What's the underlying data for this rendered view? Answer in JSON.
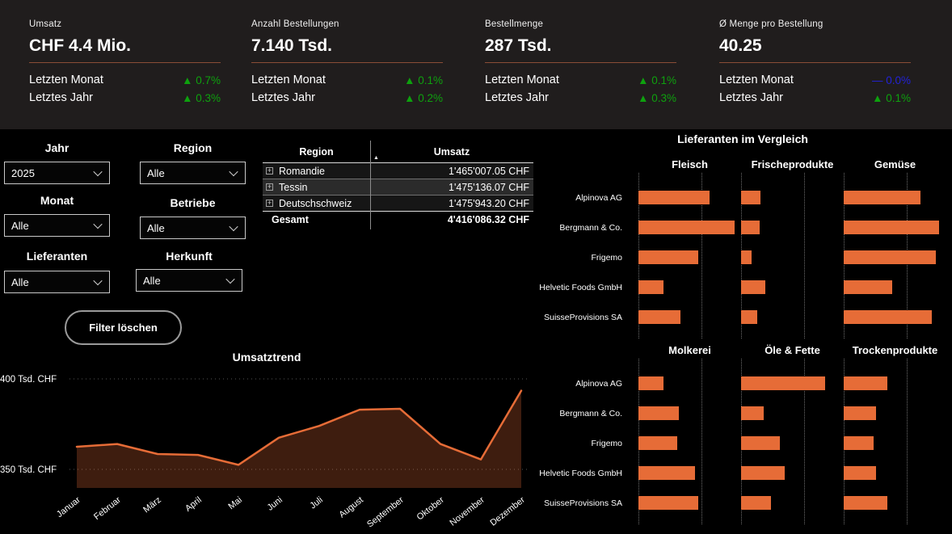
{
  "kpi_band": {
    "cards": [
      {
        "title": "Umsatz",
        "value": "CHF 4.4 Mio.",
        "rows": [
          {
            "label": "Letzten Monat",
            "trend": "up",
            "pct": "0.7%"
          },
          {
            "label": "Letztes Jahr",
            "trend": "up",
            "pct": "0.3%"
          }
        ]
      },
      {
        "title": "Anzahl Bestellungen",
        "value": "7.140 Tsd.",
        "rows": [
          {
            "label": "Letzten Monat",
            "trend": "up",
            "pct": "0.1%"
          },
          {
            "label": "Letztes Jahr",
            "trend": "up",
            "pct": "0.2%"
          }
        ]
      },
      {
        "title": "Bestellmenge",
        "value": "287 Tsd.",
        "rows": [
          {
            "label": "Letzten Monat",
            "trend": "up",
            "pct": "0.1%"
          },
          {
            "label": "Letztes Jahr",
            "trend": "up",
            "pct": "0.3%"
          }
        ]
      },
      {
        "title": "Ø Menge pro Bestellung",
        "value": "40.25",
        "rows": [
          {
            "label": "Letzten Monat",
            "trend": "flat",
            "pct": "0.0%"
          },
          {
            "label": "Letztes Jahr",
            "trend": "up",
            "pct": "0.1%"
          }
        ]
      }
    ]
  },
  "filters": {
    "fields": [
      {
        "label": "Jahr",
        "value": "2025"
      },
      {
        "label": "Region",
        "value": "Alle"
      },
      {
        "label": "Monat",
        "value": "Alle"
      },
      {
        "label": "Betriebe",
        "value": "Alle"
      },
      {
        "label": "Lieferanten",
        "value": "Alle"
      },
      {
        "label": "Herkunft",
        "value": "Alle"
      }
    ],
    "clear_button": "Filter löschen"
  },
  "region_table": {
    "columns": [
      "Region",
      "Umsatz"
    ],
    "sort": {
      "column": "Umsatz",
      "direction": "ascending"
    },
    "rows": [
      {
        "region": "Romandie",
        "umsatz": "1'465'007.05 CHF"
      },
      {
        "region": "Tessin",
        "umsatz": "1'475'136.07 CHF"
      },
      {
        "region": "Deutschschweiz",
        "umsatz": "1'475'943.20 CHF"
      }
    ],
    "total": {
      "region": "Gesamt",
      "umsatz": "4'416'086.32 CHF"
    },
    "highlighted_row": "Tessin"
  },
  "chart_data": [
    {
      "type": "line",
      "title": "Umsatztrend",
      "ylabel": "Tsd. CHF",
      "yticks": [
        {
          "label": "400 Tsd. CHF",
          "value": 400
        },
        {
          "label": "350 Tsd. CHF",
          "value": 350
        }
      ],
      "ylim": [
        340,
        405
      ],
      "grid": "horizontal-dotted",
      "x": [
        "Januar",
        "Februar",
        "März",
        "April",
        "Mai",
        "Juni",
        "Juli",
        "August",
        "September",
        "Oktober",
        "November",
        "Dezember"
      ],
      "values": [
        362.5,
        364,
        358.5,
        358,
        352.5,
        367.5,
        374,
        383,
        383.5,
        364,
        355.5,
        393.5
      ],
      "line_color": "#E66C37",
      "area_fill": true
    },
    {
      "type": "bar",
      "title": "Lieferanten im Vergleich",
      "orientation": "horizontal",
      "value_scale": "percent_of_axis_max_estimated_from_pixels",
      "suppliers": [
        "Alpinova AG",
        "Bergmann & Co.",
        "Frigemo",
        "Helvetic Foods GmbH",
        "SuisseProvisions SA"
      ],
      "panels": [
        {
          "name": "Fleisch",
          "values": [
            73,
            99,
            62,
            26,
            43
          ]
        },
        {
          "name": "Frischeprodukte",
          "values": [
            20,
            19,
            11,
            25,
            17
          ]
        },
        {
          "name": "Gemüse",
          "values": [
            79,
            98,
            95,
            50,
            91
          ]
        },
        {
          "name": "Molkerei",
          "values": [
            26,
            42,
            40,
            58,
            62
          ]
        },
        {
          "name": "Öle & Fette",
          "values": [
            87,
            23,
            40,
            45,
            31
          ]
        },
        {
          "name": "Trockenprodukte",
          "values": [
            45,
            33,
            31,
            33,
            45
          ]
        }
      ],
      "bar_color": "#E66C37"
    }
  ],
  "colors": {
    "accent_orange": "#E66C37",
    "positive_green": "#0EA10E",
    "neutral_blue": "#2222D6",
    "kpi_divider": "#8A4D36",
    "background": "#000000",
    "kpi_band_background": "#201D1D"
  }
}
